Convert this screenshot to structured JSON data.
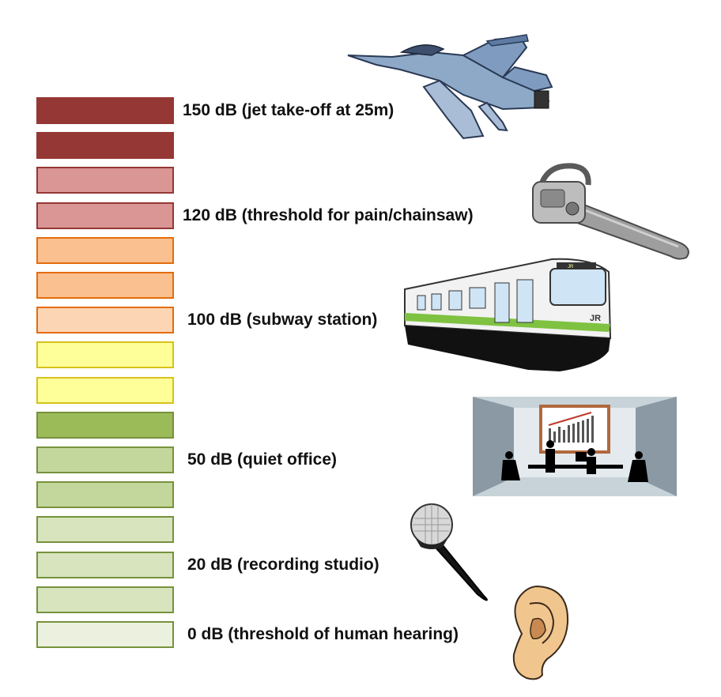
{
  "bars": [
    {
      "fill": "#953735",
      "border": "#953735"
    },
    {
      "fill": "#953735",
      "border": "#953735"
    },
    {
      "fill": "#d99694",
      "border": "#953735"
    },
    {
      "fill": "#d99694",
      "border": "#953735"
    },
    {
      "fill": "#fac090",
      "border": "#e46c0a"
    },
    {
      "fill": "#fac090",
      "border": "#e46c0a"
    },
    {
      "fill": "#fcd5b5",
      "border": "#e46c0a"
    },
    {
      "fill": "#ffff99",
      "border": "#d6c21a"
    },
    {
      "fill": "#ffff99",
      "border": "#d6c21a"
    },
    {
      "fill": "#9bbb59",
      "border": "#76923c"
    },
    {
      "fill": "#c3d69b",
      "border": "#76923c"
    },
    {
      "fill": "#c3d69b",
      "border": "#76923c"
    },
    {
      "fill": "#d7e4bd",
      "border": "#76923c"
    },
    {
      "fill": "#d7e4bd",
      "border": "#76923c"
    },
    {
      "fill": "#d7e4bd",
      "border": "#76923c"
    },
    {
      "fill": "#ebf1de",
      "border": "#76923c"
    }
  ],
  "labels": [
    {
      "text": "150 dB (jet take-off at 25m)",
      "bar_index": 0
    },
    {
      "text": "120 dB (threshold for pain/chainsaw)",
      "bar_index": 3
    },
    {
      "text": "100 dB (subway station)",
      "bar_index": 6
    },
    {
      "text": "50 dB (quiet office)",
      "bar_index": 10
    },
    {
      "text": "20 dB (recording studio)",
      "bar_index": 13
    },
    {
      "text": "0 dB (threshold of human hearing)",
      "bar_index": 15
    }
  ],
  "illustrations": {
    "jet": "fighter-jet-icon",
    "chainsaw": "chainsaw-icon",
    "train": "subway-train-icon",
    "office": "office-meeting-icon",
    "microphone": "microphone-icon",
    "ear": "ear-icon"
  },
  "train_sign": "JR"
}
